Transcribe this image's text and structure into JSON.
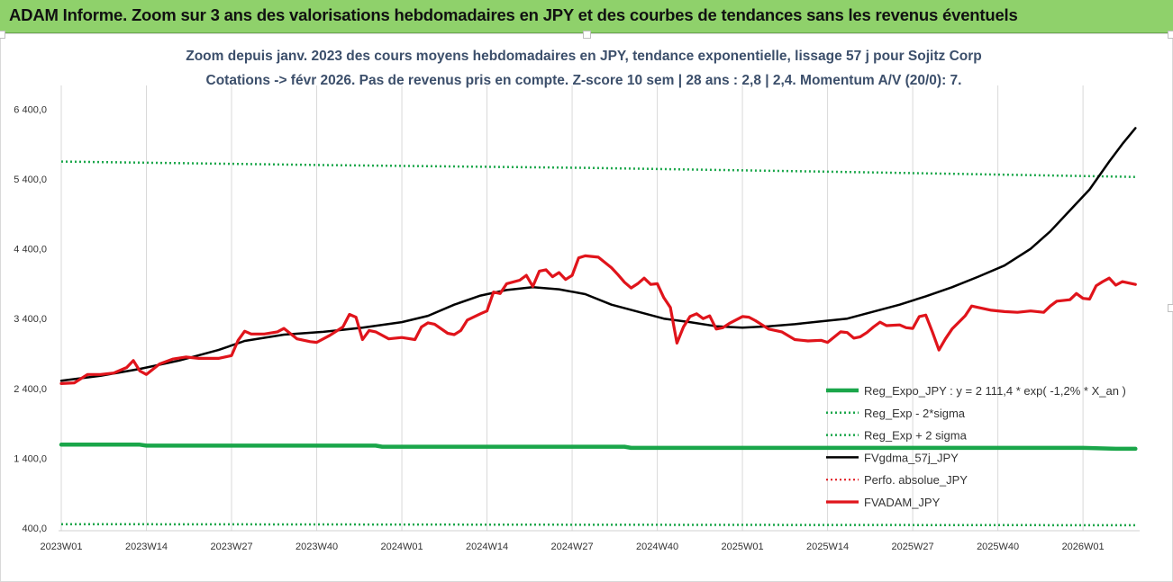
{
  "banner": {
    "title": "ADAM Informe. Zoom sur 3 ans des valorisations hebdomadaires en JPY et des courbes de tendances sans les revenus éventuels"
  },
  "colors": {
    "banner_bg": "#8fd16b",
    "title_text": "#3c4f6b",
    "reg_expo": "#1aa64a",
    "reg_band": "#1aa64a",
    "fvgdma": "#000000",
    "perfo": "#e0141b",
    "fvadam": "#e0141b"
  },
  "chart_data": {
    "type": "line",
    "title": [
      "Zoom depuis janv. 2023 des cours moyens hebdomadaires en JPY, tendance exponentielle, lissage 57 j pour Sojitz Corp",
      "Cotations -> févr 2026.  Pas de revenus pris en compte. Z-score 10 sem | 28 ans : 2,8 | 2,4. Momentum A/V (20/0): 7."
    ],
    "xlabel": "",
    "ylabel": "",
    "ylim": [
      400,
      7000
    ],
    "yticks": [
      400,
      1400,
      2400,
      3400,
      4400,
      5400,
      6400
    ],
    "ytick_labels": [
      "400,0",
      "1 400,0",
      "2 400,0",
      "3 400,0",
      "4 400,0",
      "5 400,0",
      "6 400,0"
    ],
    "x_range": [
      0,
      158
    ],
    "xticks": [
      0,
      13,
      26,
      39,
      52,
      65,
      78,
      91,
      104,
      117,
      130,
      143,
      156
    ],
    "xtick_labels": [
      "2023W01",
      "2023W14",
      "2023W27",
      "2023W40",
      "2024W01",
      "2024W14",
      "2024W27",
      "2024W40",
      "2025W01",
      "2025W14",
      "2025W27",
      "2025W40",
      "2026W01"
    ],
    "grid_x": true,
    "grid_y": false,
    "legend_position": "right",
    "series": [
      {
        "name": "Reg_Expo_JPY : y = 2 111,4 * exp( -1,2% *  X_an )",
        "style": "solid-thick",
        "points": [
          [
            0,
            1595
          ],
          [
            12,
            1595
          ],
          [
            13,
            1580
          ],
          [
            48,
            1580
          ],
          [
            49,
            1565
          ],
          [
            86,
            1565
          ],
          [
            87,
            1548
          ],
          [
            135,
            1548
          ],
          [
            156,
            1548
          ],
          [
            161,
            1535
          ],
          [
            164,
            1535
          ]
        ]
      },
      {
        "name": "Reg_Exp - 2*sigma",
        "style": "dotted",
        "points": [
          [
            0,
            455
          ],
          [
            50,
            450
          ],
          [
            100,
            445
          ],
          [
            164,
            440
          ]
        ]
      },
      {
        "name": "Reg_Exp + 2 sigma",
        "style": "dotted",
        "points": [
          [
            0,
            5650
          ],
          [
            40,
            5600
          ],
          [
            80,
            5560
          ],
          [
            120,
            5500
          ],
          [
            164,
            5430
          ]
        ]
      },
      {
        "name": "FVgdma_57j_JPY",
        "style": "solid",
        "points": [
          [
            0,
            2510
          ],
          [
            6,
            2580
          ],
          [
            12,
            2680
          ],
          [
            18,
            2800
          ],
          [
            24,
            2950
          ],
          [
            28,
            3080
          ],
          [
            34,
            3170
          ],
          [
            40,
            3210
          ],
          [
            46,
            3270
          ],
          [
            52,
            3350
          ],
          [
            56,
            3440
          ],
          [
            60,
            3600
          ],
          [
            64,
            3730
          ],
          [
            68,
            3810
          ],
          [
            72,
            3850
          ],
          [
            76,
            3820
          ],
          [
            80,
            3750
          ],
          [
            84,
            3600
          ],
          [
            88,
            3500
          ],
          [
            92,
            3400
          ],
          [
            96,
            3350
          ],
          [
            100,
            3290
          ],
          [
            104,
            3270
          ],
          [
            108,
            3290
          ],
          [
            112,
            3320
          ],
          [
            116,
            3360
          ],
          [
            120,
            3400
          ],
          [
            124,
            3500
          ],
          [
            128,
            3600
          ],
          [
            132,
            3720
          ],
          [
            136,
            3850
          ],
          [
            140,
            4000
          ],
          [
            144,
            4160
          ],
          [
            148,
            4400
          ],
          [
            151,
            4650
          ],
          [
            154,
            4950
          ],
          [
            157,
            5250
          ],
          [
            160,
            5650
          ],
          [
            162,
            5900
          ],
          [
            164,
            6130
          ]
        ]
      },
      {
        "name": "Perfo. absolue_JPY",
        "style": "dotted",
        "points": []
      },
      {
        "name": "FVADAM_JPY",
        "style": "solid-thick",
        "points": [
          [
            0,
            2470
          ],
          [
            2,
            2480
          ],
          [
            4,
            2600
          ],
          [
            6,
            2600
          ],
          [
            8,
            2620
          ],
          [
            10,
            2700
          ],
          [
            11,
            2800
          ],
          [
            12,
            2650
          ],
          [
            13,
            2600
          ],
          [
            15,
            2750
          ],
          [
            17,
            2820
          ],
          [
            19,
            2850
          ],
          [
            21,
            2830
          ],
          [
            23,
            2830
          ],
          [
            24,
            2830
          ],
          [
            26,
            2870
          ],
          [
            27,
            3090
          ],
          [
            28,
            3220
          ],
          [
            29,
            3180
          ],
          [
            31,
            3180
          ],
          [
            33,
            3210
          ],
          [
            34,
            3260
          ],
          [
            36,
            3110
          ],
          [
            38,
            3070
          ],
          [
            39,
            3060
          ],
          [
            41,
            3160
          ],
          [
            43,
            3280
          ],
          [
            44,
            3460
          ],
          [
            45,
            3420
          ],
          [
            46,
            3100
          ],
          [
            47,
            3230
          ],
          [
            48,
            3210
          ],
          [
            50,
            3110
          ],
          [
            52,
            3130
          ],
          [
            54,
            3100
          ],
          [
            55,
            3280
          ],
          [
            56,
            3340
          ],
          [
            57,
            3320
          ],
          [
            59,
            3190
          ],
          [
            60,
            3170
          ],
          [
            61,
            3230
          ],
          [
            62,
            3380
          ],
          [
            64,
            3470
          ],
          [
            65,
            3510
          ],
          [
            66,
            3780
          ],
          [
            67,
            3760
          ],
          [
            68,
            3900
          ],
          [
            70,
            3950
          ],
          [
            71,
            4020
          ],
          [
            72,
            3860
          ],
          [
            73,
            4080
          ],
          [
            74,
            4100
          ],
          [
            75,
            4000
          ],
          [
            76,
            4060
          ],
          [
            77,
            3960
          ],
          [
            78,
            4020
          ],
          [
            79,
            4270
          ],
          [
            80,
            4300
          ],
          [
            82,
            4280
          ],
          [
            84,
            4130
          ],
          [
            85,
            4030
          ],
          [
            86,
            3920
          ],
          [
            87,
            3840
          ],
          [
            88,
            3900
          ],
          [
            89,
            3980
          ],
          [
            90,
            3890
          ],
          [
            91,
            3900
          ],
          [
            92,
            3700
          ],
          [
            93,
            3560
          ],
          [
            94,
            3050
          ],
          [
            95,
            3280
          ],
          [
            96,
            3430
          ],
          [
            97,
            3470
          ],
          [
            98,
            3400
          ],
          [
            99,
            3440
          ],
          [
            100,
            3250
          ],
          [
            101,
            3270
          ],
          [
            102,
            3330
          ],
          [
            104,
            3430
          ],
          [
            105,
            3420
          ],
          [
            106,
            3370
          ],
          [
            108,
            3250
          ],
          [
            110,
            3210
          ],
          [
            112,
            3100
          ],
          [
            114,
            3080
          ],
          [
            116,
            3090
          ],
          [
            117,
            3060
          ],
          [
            119,
            3210
          ],
          [
            120,
            3200
          ],
          [
            121,
            3120
          ],
          [
            122,
            3140
          ],
          [
            123,
            3200
          ],
          [
            124,
            3280
          ],
          [
            125,
            3350
          ],
          [
            126,
            3300
          ],
          [
            128,
            3310
          ],
          [
            129,
            3270
          ],
          [
            130,
            3260
          ],
          [
            131,
            3430
          ],
          [
            132,
            3450
          ],
          [
            133,
            3210
          ],
          [
            134,
            2950
          ],
          [
            135,
            3110
          ],
          [
            136,
            3250
          ],
          [
            138,
            3440
          ],
          [
            139,
            3580
          ],
          [
            140,
            3560
          ],
          [
            142,
            3520
          ],
          [
            144,
            3500
          ],
          [
            146,
            3490
          ],
          [
            148,
            3510
          ],
          [
            150,
            3490
          ],
          [
            151,
            3580
          ],
          [
            152,
            3650
          ],
          [
            154,
            3670
          ],
          [
            155,
            3760
          ],
          [
            156,
            3690
          ],
          [
            157,
            3680
          ],
          [
            158,
            3870
          ],
          [
            159,
            3930
          ],
          [
            160,
            3980
          ],
          [
            161,
            3880
          ],
          [
            162,
            3930
          ],
          [
            164,
            3890
          ]
        ]
      }
    ]
  }
}
